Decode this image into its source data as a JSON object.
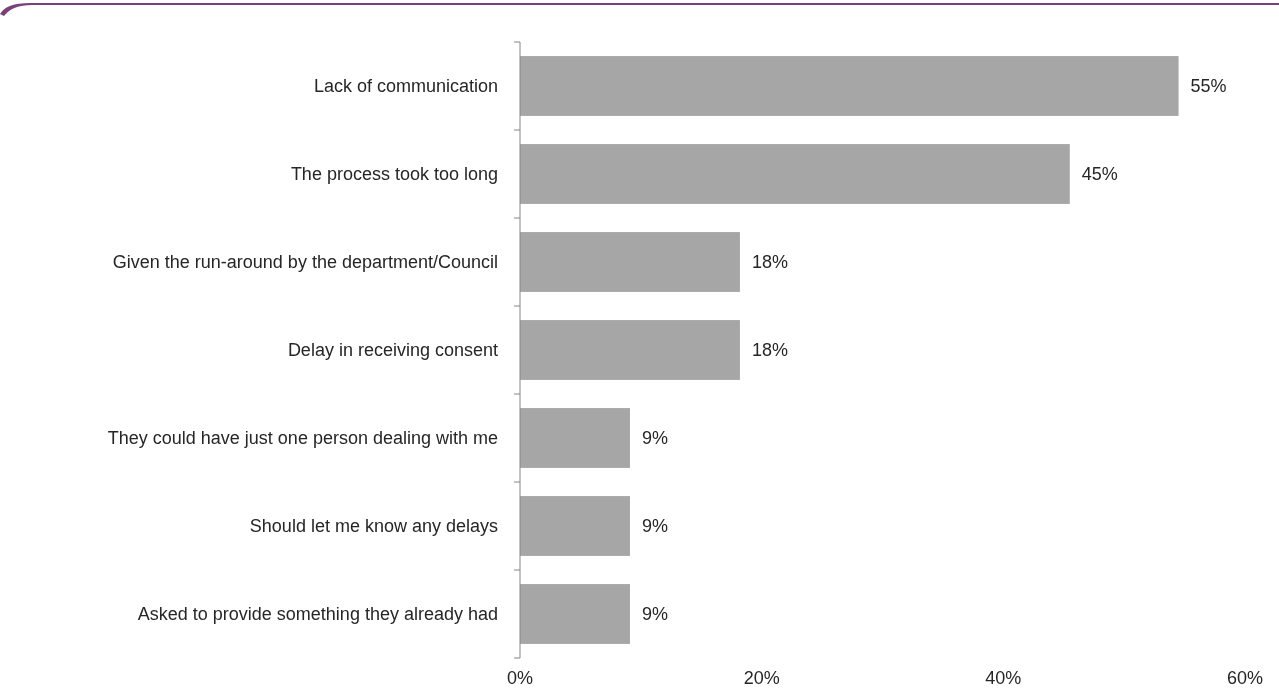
{
  "chart_data": {
    "type": "bar",
    "orientation": "horizontal",
    "categories": [
      "Lack of communication",
      "The process took too long",
      "Given the run-around by the department/Council",
      "Delay in receiving consent",
      "They could have just one person dealing with me",
      "Should let me know any delays",
      "Asked to provide something they already had"
    ],
    "values": [
      54.5,
      45.5,
      18.2,
      18.2,
      9.1,
      9.1,
      9.1
    ],
    "value_labels": [
      "55%",
      "45%",
      "18%",
      "18%",
      "9%",
      "9%",
      "9%"
    ],
    "color": "#a6a6a6",
    "xlim": [
      0,
      60
    ],
    "xticks": [
      {
        "value": 0,
        "label": "0%"
      },
      {
        "value": 20,
        "label": "20%"
      },
      {
        "value": 40,
        "label": "40%"
      },
      {
        "value": 60,
        "label": "60%"
      }
    ],
    "grid": false
  }
}
